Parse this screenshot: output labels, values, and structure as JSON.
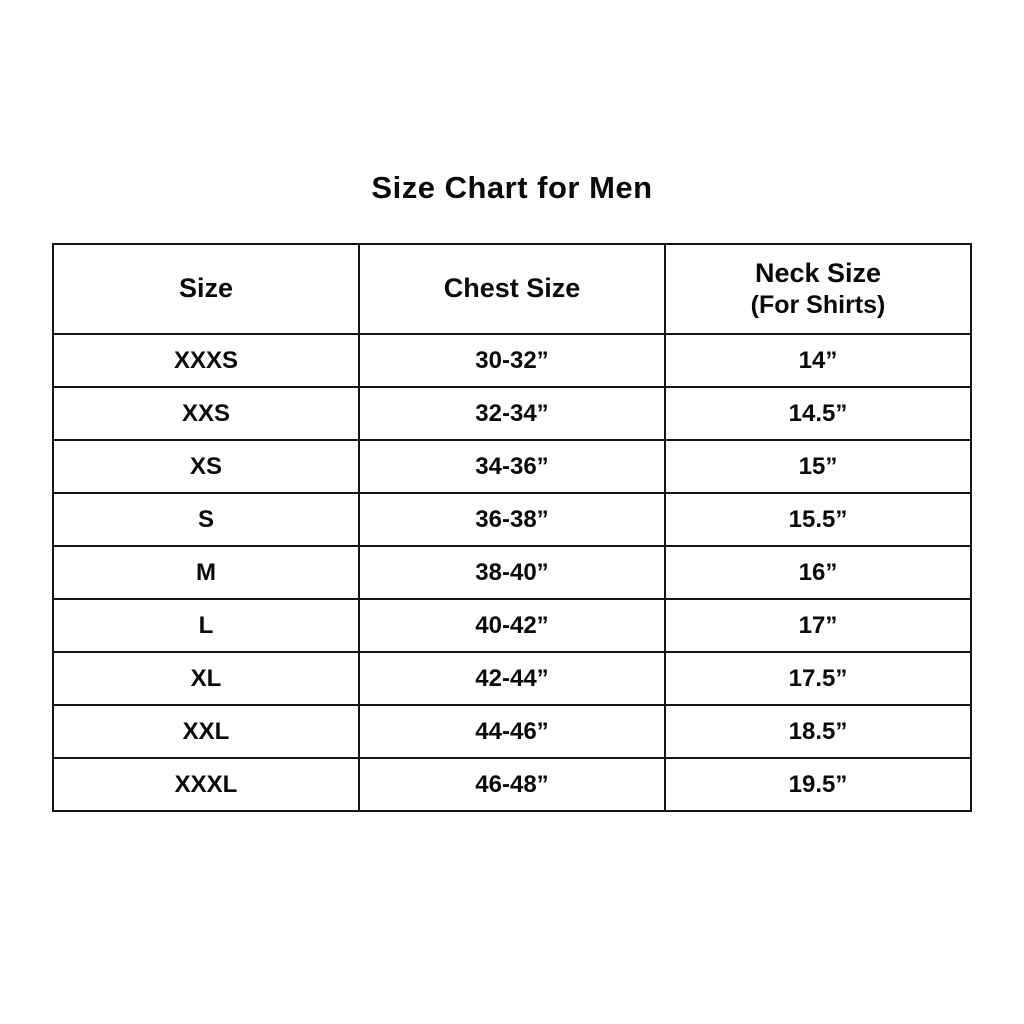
{
  "page": {
    "title": "Size Chart for Men"
  },
  "table": {
    "columns": [
      {
        "label": "Size",
        "sublabel": ""
      },
      {
        "label": "Chest Size",
        "sublabel": ""
      },
      {
        "label": "Neck Size",
        "sublabel": "(For Shirts)"
      }
    ],
    "rows": [
      {
        "size": "XXXS",
        "chest": "30-32”",
        "neck": "14”"
      },
      {
        "size": "XXS",
        "chest": "32-34”",
        "neck": "14.5”"
      },
      {
        "size": "XS",
        "chest": "34-36”",
        "neck": "15”"
      },
      {
        "size": "S",
        "chest": "36-38”",
        "neck": "15.5”"
      },
      {
        "size": "M",
        "chest": "38-40”",
        "neck": "16”"
      },
      {
        "size": "L",
        "chest": "40-42”",
        "neck": "17”"
      },
      {
        "size": "XL",
        "chest": "42-44”",
        "neck": "17.5”"
      },
      {
        "size": "XXL",
        "chest": "44-46”",
        "neck": "18.5”"
      },
      {
        "size": "XXXL",
        "chest": "46-48”",
        "neck": "19.5”"
      }
    ]
  }
}
